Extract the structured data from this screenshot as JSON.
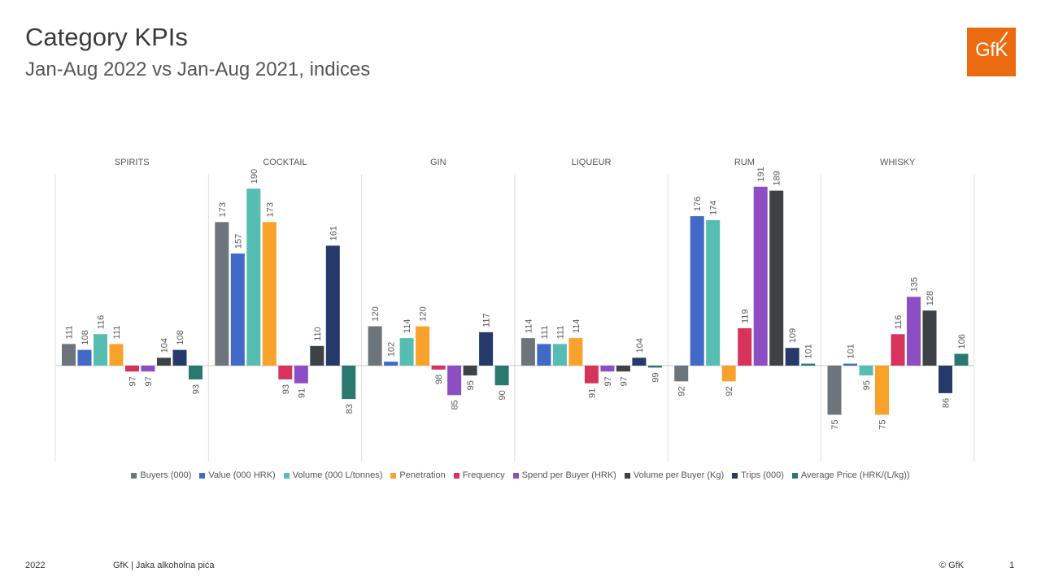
{
  "header": {
    "title": "Category KPIs",
    "subtitle": "Jan-Aug 2022 vs Jan-Aug 2021, indices",
    "logo": "GfK"
  },
  "colors": {
    "Buyers (000)": "#6c757b",
    "Value (000 HRK)": "#4169c7",
    "Volume (000 L/tonnes)": "#56bdb2",
    "Penetration": "#f9a22b",
    "Frequency": "#d6345b",
    "Spend per Buyer (HRK)": "#8c4ec2",
    "Volume per Buyer (Kg)": "#3d4247",
    "Trips (000)": "#253a6b",
    "Average Price (HRK/(L/kg))": "#2a786e",
    "logo_bg": "#ec6b10"
  },
  "chart_data": {
    "type": "bar",
    "baseline": 100,
    "ylim": [
      55,
      200
    ],
    "grid": false,
    "legend_position": "bottom",
    "categories": [
      "SPIRITS",
      "COCKTAIL",
      "GIN",
      "LIQUEUR",
      "RUM",
      "WHISKY"
    ],
    "series": [
      {
        "name": "Buyers (000)",
        "values": [
          111,
          173,
          120,
          114,
          92,
          75
        ]
      },
      {
        "name": "Value (000 HRK)",
        "values": [
          108,
          157,
          102,
          111,
          176,
          101
        ]
      },
      {
        "name": "Volume (000 L/tonnes)",
        "values": [
          116,
          190,
          114,
          111,
          174,
          95
        ]
      },
      {
        "name": "Penetration",
        "values": [
          111,
          173,
          120,
          114,
          92,
          75
        ]
      },
      {
        "name": "Frequency",
        "values": [
          97,
          93,
          98,
          91,
          119,
          116
        ]
      },
      {
        "name": "Spend per Buyer (HRK)",
        "values": [
          97,
          91,
          85,
          97,
          191,
          135
        ]
      },
      {
        "name": "Volume per Buyer (Kg)",
        "values": [
          104,
          110,
          95,
          97,
          189,
          128
        ]
      },
      {
        "name": "Trips (000)",
        "values": [
          108,
          161,
          117,
          104,
          109,
          86
        ]
      },
      {
        "name": "Average Price (HRK/(L/kg))",
        "values": [
          93,
          83,
          90,
          99,
          101,
          106
        ]
      }
    ]
  },
  "footer": {
    "year": "2022",
    "source": "GfK | Jaka alkoholna pića",
    "copyright": "© GfK",
    "page": "1"
  }
}
